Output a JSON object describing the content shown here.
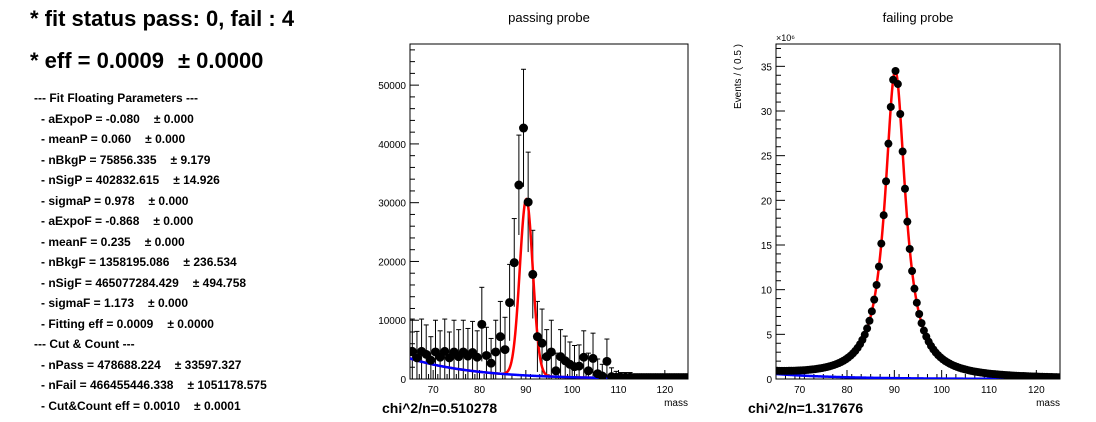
{
  "summary": {
    "fit_status": "* fit status pass: 0, fail : 4",
    "eff_label": "* eff = 0.0009",
    "eff_err": "± 0.0000"
  },
  "fit_section": {
    "title": "--- Fit Floating Parameters ---",
    "params": [
      {
        "label": "- aExpoP = -0.080",
        "err": "± 0.000"
      },
      {
        "label": "- meanP = 0.060",
        "err": "± 0.000"
      },
      {
        "label": "- nBkgP = 75856.335",
        "err": "± 9.179"
      },
      {
        "label": "- nSigP = 402832.615",
        "err": "± 14.926"
      },
      {
        "label": "- sigmaP = 0.978",
        "err": "± 0.000"
      },
      {
        "label": "- aExpoF = -0.868",
        "err": "± 0.000"
      },
      {
        "label": "- meanF = 0.235",
        "err": "± 0.000"
      },
      {
        "label": "- nBkgF = 1358195.086",
        "err": "± 236.534"
      },
      {
        "label": "- nSigF = 465077284.429",
        "err": "± 494.758"
      },
      {
        "label": "- sigmaF = 1.173",
        "err": "± 0.000"
      },
      {
        "label": "- Fitting eff = 0.0009",
        "err": "± 0.0000"
      }
    ]
  },
  "cut_section": {
    "title": "--- Cut & Count ---",
    "params": [
      {
        "label": "- nPass = 478688.224",
        "err": "± 33597.327"
      },
      {
        "label": "- nFail = 466455446.338",
        "err": "± 1051178.575"
      },
      {
        "label": "- Cut&Count eff = 0.0010",
        "err": "± 0.0001"
      }
    ]
  },
  "colors": {
    "fit_total": "#ff0000",
    "fit_background": "#0000ff",
    "data_points": "#000000"
  },
  "chart_data": [
    {
      "type": "scatter",
      "title": "passing probe",
      "xlabel": "mass",
      "ylabel": "",
      "xlim": [
        65,
        125
      ],
      "ylim": [
        0,
        57000
      ],
      "yticks": [
        0,
        10000,
        20000,
        30000,
        40000,
        50000
      ],
      "ytick_labels": [
        "0",
        "10000",
        "20000",
        "30000",
        "40000",
        "50000"
      ],
      "xticks": [
        70,
        80,
        90,
        100,
        110,
        120
      ],
      "xtick_labels": [
        "70",
        "80",
        "90",
        "100",
        "110",
        "120"
      ],
      "multiplier": "",
      "chi2_label": "chi^2/n=0.510278",
      "x": [
        65.5,
        66.5,
        67.5,
        68.5,
        69.5,
        70.5,
        71.5,
        72.5,
        73.5,
        74.5,
        75.5,
        76.5,
        77.5,
        78.5,
        79.5,
        80.5,
        81.5,
        82.5,
        83.5,
        84.5,
        85.5,
        86.5,
        87.5,
        88.5,
        89.5,
        90.5,
        91.5,
        92.5,
        93.5,
        94.5,
        95.5,
        96.5,
        97.5,
        98.5,
        99.5,
        100.5,
        101.5,
        102.5,
        103.5,
        104.5,
        105.5,
        106.5,
        107.5,
        108.5,
        109.5,
        110.5,
        111.5,
        112.5,
        113.5,
        114.5,
        115.5,
        116.5,
        117.5,
        118.5,
        119.5,
        120.5,
        121.5,
        122.5,
        123.5,
        124.5
      ],
      "y": [
        4700,
        3600,
        4700,
        4200,
        3200,
        4600,
        3700,
        4700,
        3600,
        4600,
        3800,
        4600,
        3900,
        4500,
        3700,
        9300,
        4000,
        2700,
        4600,
        7200,
        5000,
        13000,
        19800,
        33000,
        42700,
        30100,
        17800,
        7200,
        6100,
        3800,
        4600,
        1400,
        3800,
        3100,
        2500,
        2100,
        2200,
        3700,
        1400,
        3500,
        900,
        500,
        3000,
        400,
        300,
        300,
        300,
        300,
        200,
        200,
        200,
        200,
        200,
        200,
        200,
        200,
        200,
        200,
        200,
        200
      ],
      "yerr": [
        5500,
        4500,
        5500,
        5000,
        4000,
        5400,
        4500,
        5500,
        4400,
        5400,
        4600,
        5400,
        4700,
        5300,
        4500,
        6300,
        4800,
        4200,
        5400,
        6000,
        5500,
        6500,
        7500,
        8500,
        10000,
        8500,
        7500,
        6000,
        5800,
        4600,
        5400,
        3000,
        4600,
        4200,
        3800,
        3600,
        3600,
        4500,
        3000,
        4300,
        2500,
        2000,
        3800,
        1500,
        1000,
        800,
        800,
        800,
        700,
        700,
        700,
        700,
        700,
        700,
        700,
        700,
        700,
        700,
        700,
        700
      ],
      "series": [
        {
          "name": "",
          "fit": "total",
          "params": {
            "bkg0": 3500,
            "slope": -0.07,
            "amp": 30000,
            "mu": 90.1,
            "sigma": 1.4
          }
        },
        {
          "name": "",
          "fit": "background",
          "params": {
            "bkg0": 3500,
            "slope": -0.07
          }
        }
      ]
    },
    {
      "type": "scatter",
      "title": "failing probe",
      "xlabel": "mass",
      "ylabel": "Events / ( 0.5 )",
      "xlim": [
        65,
        125
      ],
      "ylim": [
        0,
        37.5
      ],
      "yticks": [
        0,
        5,
        10,
        15,
        20,
        25,
        30,
        35
      ],
      "ytick_labels": [
        "0",
        "5",
        "10",
        "15",
        "20",
        "25",
        "30",
        "35"
      ],
      "xticks": [
        70,
        80,
        90,
        100,
        110,
        120
      ],
      "xtick_labels": [
        "70",
        "80",
        "90",
        "100",
        "110",
        "120"
      ],
      "multiplier": "×10⁶",
      "chi2_label": "chi^2/n=1.317676",
      "fit_params": {
        "mu": 90.2,
        "gamma": 2.6,
        "amp": 34.4,
        "bkg0": 1.4,
        "slope": -0.07
      },
      "x_start": 65.25,
      "x_step": 0.5,
      "n_points": 120
    }
  ]
}
